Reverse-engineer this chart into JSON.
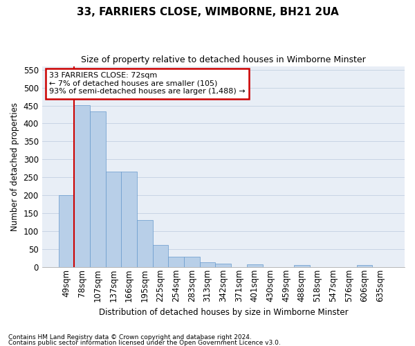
{
  "title": "33, FARRIERS CLOSE, WIMBORNE, BH21 2UA",
  "subtitle": "Size of property relative to detached houses in Wimborne Minster",
  "xlabel": "Distribution of detached houses by size in Wimborne Minster",
  "ylabel": "Number of detached properties",
  "footnote1": "Contains HM Land Registry data © Crown copyright and database right 2024.",
  "footnote2": "Contains public sector information licensed under the Open Government Licence v3.0.",
  "categories": [
    "49sqm",
    "78sqm",
    "107sqm",
    "137sqm",
    "166sqm",
    "195sqm",
    "225sqm",
    "254sqm",
    "283sqm",
    "313sqm",
    "342sqm",
    "371sqm",
    "401sqm",
    "430sqm",
    "459sqm",
    "488sqm",
    "518sqm",
    "547sqm",
    "576sqm",
    "606sqm",
    "635sqm"
  ],
  "values": [
    200,
    451,
    434,
    265,
    265,
    130,
    62,
    29,
    29,
    14,
    9,
    0,
    7,
    0,
    0,
    5,
    0,
    0,
    0,
    5,
    0
  ],
  "bar_color": "#b8cfe8",
  "bar_edge_color": "#6699cc",
  "grid_color": "#c8d4e4",
  "bg_color": "#e8eef6",
  "annotation_line1": "33 FARRIERS CLOSE: 72sqm",
  "annotation_line2": "← 7% of detached houses are smaller (105)",
  "annotation_line3": "93% of semi-detached houses are larger (1,488) →",
  "annotation_box_color": "#ffffff",
  "annotation_box_edge": "#cc0000",
  "vline_color": "#cc0000",
  "vline_x": 0.5,
  "ylim": [
    0,
    560
  ],
  "yticks": [
    0,
    50,
    100,
    150,
    200,
    250,
    300,
    350,
    400,
    450,
    500,
    550
  ]
}
